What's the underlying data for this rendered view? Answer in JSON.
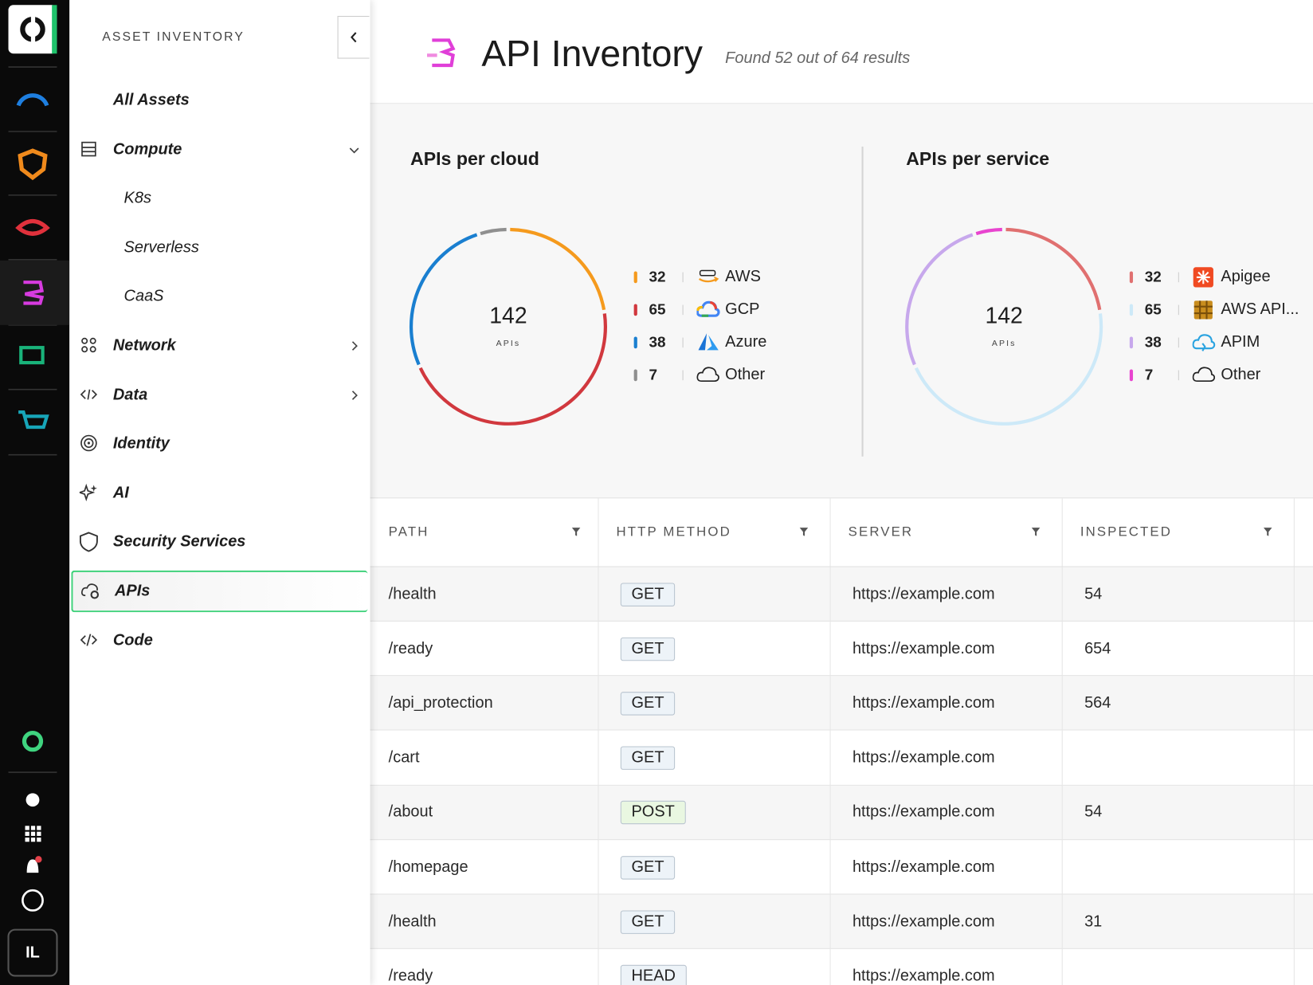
{
  "sidebar": {
    "title": "ASSET INVENTORY",
    "user_initials": "IL",
    "items": [
      {
        "label": "All Assets"
      },
      {
        "label": "Compute",
        "expanded": true,
        "children": [
          {
            "label": "K8s"
          },
          {
            "label": "Serverless"
          },
          {
            "label": "CaaS"
          }
        ]
      },
      {
        "label": "Network",
        "expandable": true
      },
      {
        "label": "Data",
        "expandable": true
      },
      {
        "label": "Identity"
      },
      {
        "label": "AI"
      },
      {
        "label": "Security Services"
      },
      {
        "label": "APIs",
        "active": true
      },
      {
        "label": "Code"
      }
    ]
  },
  "header": {
    "title": "API Inventory",
    "subtitle": "Found 52 out of 64 results"
  },
  "chart_data": [
    {
      "type": "donut",
      "title": "APIs per cloud",
      "total": 142,
      "center_label": "APIs",
      "categories": [
        "AWS",
        "GCP",
        "Azure",
        "Other"
      ],
      "values": [
        32,
        65,
        38,
        7
      ],
      "colors": [
        "#f59a1d",
        "#d1383e",
        "#1a7fd0",
        "#8f8f8f"
      ]
    },
    {
      "type": "donut",
      "title": "APIs per service",
      "total": 142,
      "center_label": "APIs",
      "categories": [
        "Apigee",
        "AWS API...",
        "APIM",
        "Other"
      ],
      "values": [
        32,
        65,
        38,
        7
      ],
      "colors": [
        "#e07070",
        "#cde9f8",
        "#c7a8ec",
        "#e844cf"
      ]
    }
  ],
  "table": {
    "columns": [
      "PATH",
      "HTTP METHOD",
      "SERVER",
      "INSPECTED"
    ],
    "rows": [
      {
        "path": "/health",
        "method": "GET",
        "method_color": "#edf3f8",
        "server": "https://example.com",
        "inspected": 54
      },
      {
        "path": "/ready",
        "method": "GET",
        "method_color": "#edf3f8",
        "server": "https://example.com",
        "inspected": 654
      },
      {
        "path": "/api_protection",
        "method": "GET",
        "method_color": "#edf3f8",
        "server": "https://example.com",
        "inspected": 564
      },
      {
        "path": "/cart",
        "method": "GET",
        "method_color": "#edf3f8",
        "server": "https://example.com",
        "inspected": null
      },
      {
        "path": "/about",
        "method": "POST",
        "method_color": "#e9f7e1",
        "server": "https://example.com",
        "inspected": 54
      },
      {
        "path": "/homepage",
        "method": "GET",
        "method_color": "#edf3f8",
        "server": "https://example.com",
        "inspected": null
      },
      {
        "path": "/health",
        "method": "GET",
        "method_color": "#edf3f8",
        "server": "https://example.com",
        "inspected": 31
      },
      {
        "path": "/ready",
        "method": "HEAD",
        "method_color": "#edf3f8",
        "server": "https://example.com",
        "inspected": null
      }
    ]
  }
}
